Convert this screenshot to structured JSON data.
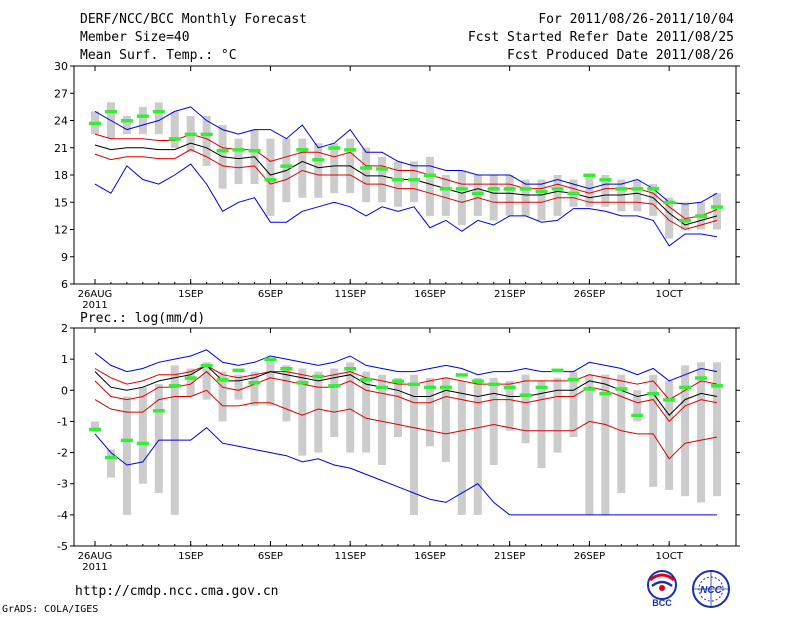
{
  "header": {
    "title": "DERF/NCC/BCC Monthly Forecast",
    "member_size": "Member Size=40",
    "variable_temp": "Mean Surf. Temp.: °C",
    "forecast_range": "For 2011/08/26-2011/10/04",
    "started_refer": "Fcst Started Refer Date 2011/08/25",
    "produced_date": "Fcst Produced Date 2011/08/26"
  },
  "footer": {
    "url": "http://cmdp.ncc.cma.gov.cn",
    "credit": "GrADS: COLA/IGES",
    "logo_bcc": "BCC",
    "logo_ncc": "NCC"
  },
  "colors": {
    "max_line": "#0000dd",
    "min_line": "#0000dd",
    "upper_line": "#dd0000",
    "lower_line": "#dd0000",
    "mean_line": "#000000",
    "observed": "#33ee33",
    "spread_bar": "#cccccc"
  },
  "chart_data": [
    {
      "type": "line",
      "title": "Mean Surf. Temp.: °C",
      "ylim": [
        6,
        30
      ],
      "yticks": [
        6,
        9,
        12,
        15,
        18,
        21,
        24,
        27,
        30
      ],
      "x_tick_labels": [
        {
          "day": 0,
          "label": "26AUG",
          "sub": "2011"
        },
        {
          "day": 6,
          "label": "1SEP"
        },
        {
          "day": 11,
          "label": "6SEP"
        },
        {
          "day": 16,
          "label": "11SEP"
        },
        {
          "day": 21,
          "label": "16SEP"
        },
        {
          "day": 26,
          "label": "21SEP"
        },
        {
          "day": 31,
          "label": "26SEP"
        },
        {
          "day": 36,
          "label": "1OCT"
        }
      ],
      "days": 40,
      "series": [
        {
          "name": "max",
          "values": [
            25.0,
            24.0,
            23.0,
            23.5,
            24.0,
            25.0,
            25.5,
            24.0,
            23.0,
            22.5,
            23.0,
            23.0,
            22.0,
            23.5,
            21.0,
            21.5,
            23.0,
            20.5,
            20.5,
            19.5,
            19.0,
            19.0,
            18.5,
            18.5,
            18.0,
            18.0,
            18.0,
            17.0,
            17.0,
            17.5,
            17.0,
            16.5,
            17.0,
            17.0,
            17.5,
            16.5,
            15.0,
            14.8,
            15.0,
            16.0
          ]
        },
        {
          "name": "upper",
          "values": [
            22.5,
            22.0,
            22.0,
            22.0,
            21.8,
            21.8,
            22.5,
            22.0,
            21.0,
            20.8,
            20.8,
            19.5,
            20.0,
            20.5,
            20.5,
            20.0,
            20.5,
            19.0,
            19.0,
            18.5,
            18.5,
            18.0,
            17.5,
            17.0,
            17.0,
            17.0,
            17.0,
            16.5,
            16.5,
            17.0,
            16.5,
            16.0,
            16.5,
            16.5,
            16.5,
            16.0,
            14.5,
            13.2,
            13.5,
            14.2
          ]
        },
        {
          "name": "mean",
          "values": [
            21.3,
            20.8,
            21.0,
            21.0,
            20.8,
            20.8,
            21.5,
            21.0,
            20.0,
            19.8,
            20.0,
            18.0,
            18.5,
            19.5,
            18.8,
            19.0,
            19.0,
            17.9,
            17.9,
            17.5,
            17.5,
            17.0,
            16.5,
            16.0,
            16.5,
            16.0,
            16.0,
            15.8,
            15.8,
            16.2,
            16.0,
            15.5,
            15.8,
            15.8,
            16.0,
            15.5,
            13.8,
            12.5,
            13.0,
            13.5
          ]
        },
        {
          "name": "lower",
          "values": [
            20.3,
            19.7,
            20.0,
            20.0,
            19.8,
            19.8,
            20.8,
            20.0,
            19.0,
            18.8,
            19.0,
            17.0,
            17.5,
            18.5,
            18.0,
            18.0,
            18.0,
            17.0,
            17.0,
            16.5,
            16.5,
            16.0,
            15.5,
            15.0,
            15.5,
            15.0,
            15.0,
            15.0,
            15.0,
            15.5,
            15.5,
            15.0,
            15.0,
            15.0,
            15.0,
            14.8,
            13.0,
            12.0,
            12.5,
            13.0
          ]
        },
        {
          "name": "min",
          "values": [
            17.0,
            16.0,
            19.0,
            17.5,
            17.0,
            18.0,
            19.2,
            17.0,
            14.0,
            15.0,
            15.5,
            12.8,
            12.8,
            14.0,
            14.5,
            15.0,
            14.5,
            13.5,
            14.5,
            14.0,
            14.5,
            12.2,
            13.0,
            11.8,
            13.0,
            12.5,
            13.5,
            13.5,
            12.8,
            13.0,
            14.3,
            14.3,
            14.0,
            13.5,
            13.5,
            13.0,
            10.2,
            11.5,
            11.5,
            11.2
          ]
        },
        {
          "name": "observed",
          "values": [
            23.7,
            25.0,
            24.0,
            24.5,
            25.0,
            22.0,
            22.5,
            22.5,
            20.7,
            20.8,
            20.7,
            17.5,
            19.0,
            20.8,
            19.7,
            21.0,
            20.8,
            18.8,
            18.7,
            17.5,
            17.5,
            18.0,
            16.5,
            16.5,
            16.0,
            16.5,
            16.5,
            16.5,
            16.2,
            16.5,
            16.0,
            18.0,
            17.5,
            16.5,
            16.5,
            16.5,
            15.0,
            13.0,
            13.5,
            14.5
          ]
        },
        {
          "name": "spread_high",
          "values": [
            25.0,
            26.0,
            24.5,
            25.5,
            26.0,
            25.0,
            24.5,
            24.5,
            23.5,
            22.0,
            23.0,
            22.0,
            22.0,
            22.0,
            21.5,
            21.5,
            22.0,
            21.0,
            20.0,
            19.5,
            19.5,
            20.0,
            18.0,
            18.5,
            18.0,
            18.0,
            18.0,
            17.5,
            17.5,
            18.0,
            17.5,
            18.0,
            18.0,
            17.5,
            17.5,
            17.0,
            15.5,
            15.0,
            15.0,
            16.0
          ]
        },
        {
          "name": "spread_low",
          "values": [
            22.5,
            22.0,
            22.5,
            22.5,
            22.5,
            21.0,
            20.5,
            19.0,
            16.5,
            17.0,
            17.0,
            13.5,
            15.0,
            15.5,
            15.5,
            16.0,
            16.0,
            15.0,
            15.0,
            14.5,
            15.0,
            13.5,
            13.5,
            12.5,
            13.5,
            13.0,
            13.5,
            13.5,
            13.0,
            13.5,
            14.5,
            14.5,
            14.5,
            14.0,
            14.0,
            13.5,
            11.0,
            12.0,
            12.0,
            12.0
          ]
        }
      ]
    },
    {
      "type": "line",
      "title": "Prec.: log(mm/d)",
      "ylim": [
        -5,
        2
      ],
      "yticks": [
        -5,
        -4,
        -3,
        -2,
        -1,
        0,
        1,
        2
      ],
      "x_tick_labels": [
        {
          "day": 0,
          "label": "26AUG",
          "sub": "2011"
        },
        {
          "day": 6,
          "label": "1SEP"
        },
        {
          "day": 11,
          "label": "6SEP"
        },
        {
          "day": 16,
          "label": "11SEP"
        },
        {
          "day": 21,
          "label": "16SEP"
        },
        {
          "day": 26,
          "label": "21SEP"
        },
        {
          "day": 31,
          "label": "26SEP"
        },
        {
          "day": 36,
          "label": "1OCT"
        }
      ],
      "days": 40,
      "series": [
        {
          "name": "max",
          "values": [
            1.2,
            0.8,
            0.6,
            0.7,
            0.9,
            1.0,
            1.1,
            1.3,
            0.9,
            0.8,
            0.9,
            1.1,
            1.0,
            0.9,
            0.8,
            0.9,
            1.1,
            0.8,
            0.7,
            0.6,
            0.6,
            0.7,
            0.8,
            0.7,
            0.5,
            0.6,
            0.6,
            0.7,
            0.6,
            0.6,
            0.6,
            0.9,
            0.8,
            0.7,
            0.5,
            0.7,
            0.3,
            0.5,
            0.7,
            0.6
          ]
        },
        {
          "name": "upper",
          "values": [
            0.7,
            0.4,
            0.2,
            0.3,
            0.5,
            0.5,
            0.6,
            0.8,
            0.5,
            0.4,
            0.5,
            0.6,
            0.6,
            0.5,
            0.4,
            0.5,
            0.6,
            0.4,
            0.3,
            0.2,
            0.2,
            0.3,
            0.4,
            0.3,
            0.2,
            0.2,
            0.2,
            0.3,
            0.3,
            0.3,
            0.3,
            0.5,
            0.4,
            0.3,
            0.2,
            0.3,
            -0.3,
            0.0,
            0.3,
            0.2
          ]
        },
        {
          "name": "mean",
          "values": [
            0.6,
            0.1,
            0.0,
            0.1,
            0.3,
            0.4,
            0.5,
            0.8,
            0.3,
            0.3,
            0.4,
            0.6,
            0.5,
            0.4,
            0.3,
            0.4,
            0.5,
            0.2,
            0.1,
            0.0,
            -0.2,
            -0.2,
            0.0,
            -0.1,
            -0.2,
            -0.1,
            -0.2,
            -0.2,
            -0.1,
            0.0,
            0.0,
            0.3,
            0.2,
            0.0,
            -0.2,
            -0.1,
            -0.8,
            -0.3,
            -0.1,
            -0.2
          ]
        },
        {
          "name": "lower",
          "values": [
            0.3,
            -0.2,
            -0.3,
            -0.2,
            0.1,
            0.1,
            0.2,
            0.6,
            0.1,
            0.0,
            0.2,
            0.4,
            0.3,
            0.2,
            0.1,
            0.1,
            0.3,
            0.0,
            -0.1,
            -0.2,
            -0.4,
            -0.4,
            -0.2,
            -0.3,
            -0.4,
            -0.3,
            -0.3,
            -0.4,
            -0.3,
            -0.2,
            -0.2,
            0.1,
            0.0,
            -0.2,
            -0.4,
            -0.3,
            -1.0,
            -0.5,
            -0.3,
            -0.4
          ]
        },
        {
          "name": "lower2",
          "values": [
            -0.3,
            -0.6,
            -0.7,
            -0.7,
            -0.3,
            -0.2,
            -0.2,
            0.0,
            -0.5,
            -0.5,
            -0.4,
            -0.4,
            -0.6,
            -0.8,
            -0.6,
            -0.7,
            -0.6,
            -0.9,
            -1.0,
            -1.1,
            -1.2,
            -1.3,
            -1.4,
            -1.3,
            -1.2,
            -1.1,
            -1.2,
            -1.3,
            -1.3,
            -1.3,
            -1.3,
            -1.0,
            -1.1,
            -1.3,
            -1.4,
            -1.4,
            -2.2,
            -1.7,
            -1.6,
            -1.5
          ]
        },
        {
          "name": "min",
          "values": [
            -1.4,
            -2.0,
            -2.4,
            -2.3,
            -1.6,
            -1.6,
            -1.6,
            -1.2,
            -1.7,
            -1.8,
            -1.9,
            -2.0,
            -2.1,
            -2.3,
            -2.2,
            -2.4,
            -2.5,
            -2.7,
            -2.9,
            -3.1,
            -3.3,
            -3.5,
            -3.6,
            -3.3,
            -3.0,
            -3.6,
            -4.0,
            -4.0,
            -4.0,
            -4.0,
            -4.0,
            -4.0,
            -4.0,
            -4.0,
            -4.0,
            -4.0,
            -4.0,
            -4.0,
            -4.0,
            -4.0
          ]
        },
        {
          "name": "observed",
          "values": [
            -1.25,
            -2.15,
            -1.6,
            -1.7,
            -0.65,
            0.15,
            0.4,
            0.8,
            0.35,
            0.65,
            0.25,
            1.0,
            0.7,
            0.25,
            0.45,
            0.15,
            0.7,
            0.35,
            0.1,
            0.3,
            0.2,
            0.1,
            0.1,
            0.5,
            0.3,
            0.2,
            0.1,
            -0.15,
            0.1,
            0.65,
            0.35,
            0.05,
            -0.1,
            0.05,
            -0.8,
            -0.1,
            -0.3,
            0.1,
            0.4,
            0.15
          ]
        },
        {
          "name": "spread_high",
          "values": [
            -1.0,
            -1.9,
            -0.2,
            0.1,
            0.2,
            0.8,
            0.7,
            0.9,
            0.6,
            0.5,
            0.6,
            1.0,
            0.8,
            0.7,
            0.6,
            0.7,
            0.9,
            0.6,
            0.5,
            0.4,
            0.5,
            0.4,
            0.4,
            0.3,
            0.4,
            0.4,
            0.3,
            0.5,
            0.3,
            0.4,
            0.6,
            0.5,
            0.5,
            0.5,
            0.0,
            0.5,
            0.3,
            0.8,
            0.9,
            0.9
          ]
        },
        {
          "name": "spread_low",
          "values": [
            -1.3,
            -2.8,
            -4.0,
            -3.0,
            -3.3,
            -4.0,
            -0.2,
            -0.3,
            -1.0,
            -0.3,
            -0.5,
            -0.5,
            -1.0,
            -2.1,
            -2.0,
            -1.5,
            -2.0,
            -2.0,
            -2.4,
            -1.5,
            -4.0,
            -1.8,
            -2.3,
            -4.0,
            -4.0,
            -2.4,
            -1.3,
            -1.7,
            -2.5,
            -2.0,
            -1.5,
            -4.0,
            -4.0,
            -3.3,
            -1.0,
            -3.1,
            -3.2,
            -3.4,
            -3.6,
            -3.4
          ]
        }
      ]
    }
  ]
}
